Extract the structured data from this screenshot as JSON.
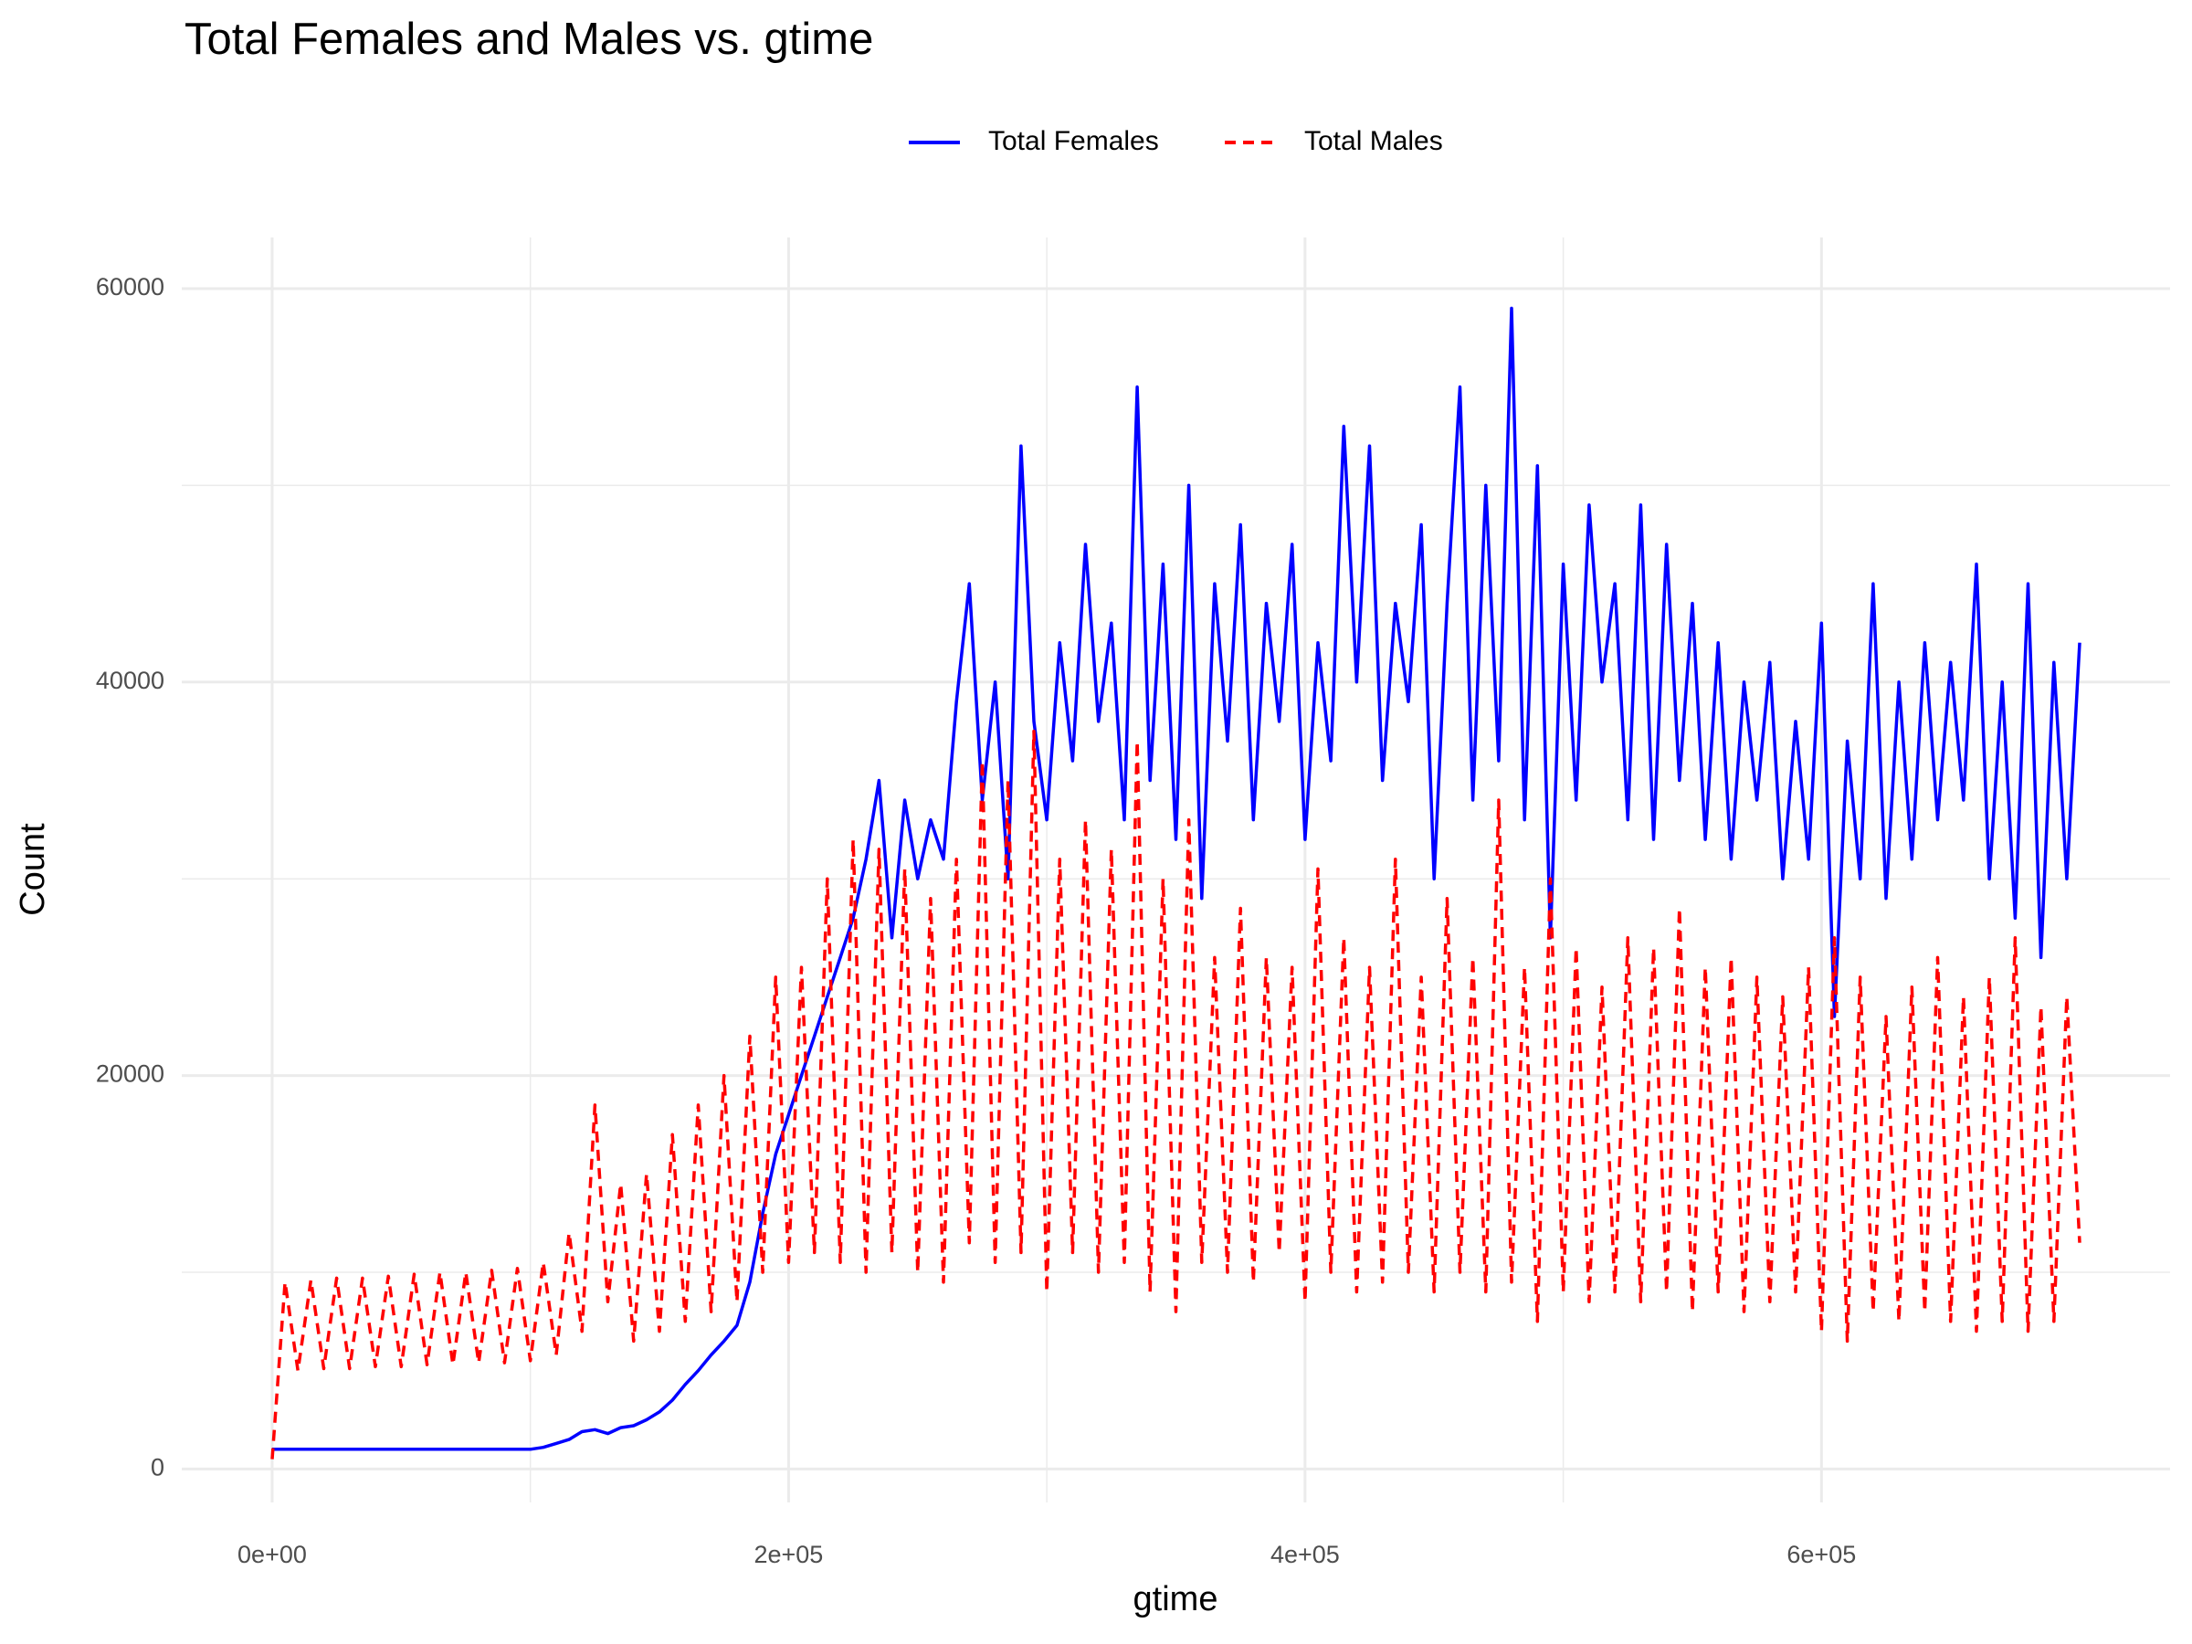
{
  "chart_data": {
    "type": "line",
    "title": "Total Females and Males vs. gtime",
    "x_label": "gtime",
    "y_label": "Count",
    "x": [
      0,
      5000,
      10000,
      15000,
      20000,
      25000,
      30000,
      35000,
      40000,
      45000,
      50000,
      55000,
      60000,
      65000,
      70000,
      75000,
      80000,
      85000,
      90000,
      95000,
      100000,
      105000,
      110000,
      115000,
      120000,
      125000,
      130000,
      135000,
      140000,
      145000,
      150000,
      155000,
      160000,
      165000,
      170000,
      175000,
      180000,
      185000,
      190000,
      195000,
      200000,
      205000,
      210000,
      215000,
      220000,
      225000,
      230000,
      235000,
      240000,
      245000,
      250000,
      255000,
      260000,
      265000,
      270000,
      275000,
      280000,
      285000,
      290000,
      295000,
      300000,
      305000,
      310000,
      315000,
      320000,
      325000,
      330000,
      335000,
      340000,
      345000,
      350000,
      355000,
      360000,
      365000,
      370000,
      375000,
      380000,
      385000,
      390000,
      395000,
      400000,
      405000,
      410000,
      415000,
      420000,
      425000,
      430000,
      435000,
      440000,
      445000,
      450000,
      455000,
      460000,
      465000,
      470000,
      475000,
      480000,
      485000,
      490000,
      495000,
      500000,
      505000,
      510000,
      515000,
      520000,
      525000,
      530000,
      535000,
      540000,
      545000,
      550000,
      555000,
      560000,
      565000,
      570000,
      575000,
      580000,
      585000,
      590000,
      595000,
      600000,
      605000,
      610000,
      615000,
      620000,
      625000,
      630000,
      635000,
      640000,
      645000,
      650000,
      655000,
      660000,
      665000,
      670000,
      675000,
      680000,
      685000,
      690000,
      695000,
      700000
    ],
    "series": [
      {
        "name": "Total Females",
        "color": "#0000ff",
        "dash": "solid",
        "values": [
          1000,
          1000,
          1000,
          1000,
          1000,
          1000,
          1000,
          1000,
          1000,
          1000,
          1000,
          1000,
          1000,
          1000,
          1000,
          1000,
          1000,
          1000,
          1000,
          1000,
          1000,
          1100,
          1300,
          1500,
          1900,
          2000,
          1800,
          2100,
          2200,
          2500,
          2900,
          3500,
          4300,
          5000,
          5800,
          6500,
          7300,
          9500,
          13000,
          16000,
          18000,
          20000,
          22000,
          24000,
          26000,
          28000,
          31000,
          35000,
          27000,
          34000,
          30000,
          33000,
          31000,
          39000,
          45000,
          34000,
          40000,
          30000,
          52000,
          38000,
          33000,
          42000,
          36000,
          47000,
          38000,
          43000,
          33000,
          55000,
          35000,
          46000,
          32000,
          50000,
          29000,
          45000,
          37000,
          48000,
          33000,
          44000,
          38000,
          47000,
          32000,
          42000,
          36000,
          53000,
          40000,
          52000,
          35000,
          44000,
          39000,
          48000,
          30000,
          44000,
          55000,
          34000,
          50000,
          36000,
          59000,
          33000,
          51000,
          27000,
          46000,
          34000,
          49000,
          40000,
          45000,
          33000,
          49000,
          32000,
          47000,
          35000,
          44000,
          32000,
          42000,
          31000,
          40000,
          34000,
          41000,
          30000,
          38000,
          31000,
          43000,
          23000,
          37000,
          30000,
          45000,
          29000,
          40000,
          31000,
          42000,
          33000,
          41000,
          34000,
          46000,
          30000,
          40000,
          28000,
          45000,
          26000,
          41000,
          30000,
          42000
        ]
      },
      {
        "name": "Total Males",
        "color": "#ff0000",
        "dash": "dashed",
        "values": [
          500,
          9500,
          5000,
          9600,
          5100,
          9700,
          5100,
          9700,
          5200,
          9800,
          5200,
          9900,
          5300,
          10000,
          5300,
          10000,
          5400,
          10100,
          5400,
          10200,
          5500,
          10500,
          5800,
          12000,
          7000,
          18500,
          8500,
          14500,
          6500,
          15000,
          7000,
          17000,
          7500,
          18500,
          8000,
          20000,
          8500,
          22000,
          10000,
          25000,
          10500,
          25500,
          11000,
          30000,
          10500,
          32000,
          10000,
          31500,
          11000,
          30500,
          10000,
          29000,
          9500,
          31000,
          11500,
          36000,
          10500,
          35000,
          11000,
          37500,
          9000,
          31000,
          11000,
          33000,
          10000,
          31500,
          10500,
          37000,
          9000,
          30000,
          8000,
          33000,
          10500,
          26000,
          10000,
          28500,
          9500,
          26000,
          11000,
          25500,
          8500,
          30500,
          10000,
          27000,
          9000,
          25500,
          9500,
          31000,
          10000,
          25000,
          9000,
          29000,
          10000,
          26000,
          9000,
          34000,
          9500,
          25500,
          7500,
          30000,
          9000,
          26500,
          8500,
          24500,
          9000,
          27000,
          8500,
          26500,
          9000,
          28500,
          8000,
          25500,
          9000,
          26000,
          8000,
          25000,
          8500,
          24000,
          9000,
          25500,
          7000,
          27000,
          6500,
          25000,
          8000,
          23000,
          7500,
          24500,
          8000,
          26000,
          7500,
          24000,
          7000,
          25000,
          7500,
          27000,
          7000,
          23500,
          7500,
          24000,
          11500
        ]
      }
    ],
    "xlim": [
      -35000,
      735000
    ],
    "ylim": [
      -1700,
      62600
    ],
    "xticks": [
      {
        "value": 0,
        "label": "0e+00"
      },
      {
        "value": 200000,
        "label": "2e+05"
      },
      {
        "value": 400000,
        "label": "4e+05"
      },
      {
        "value": 600000,
        "label": "6e+05"
      }
    ],
    "yticks": [
      0,
      20000,
      40000,
      60000
    ],
    "grid": true,
    "legend": "top"
  }
}
